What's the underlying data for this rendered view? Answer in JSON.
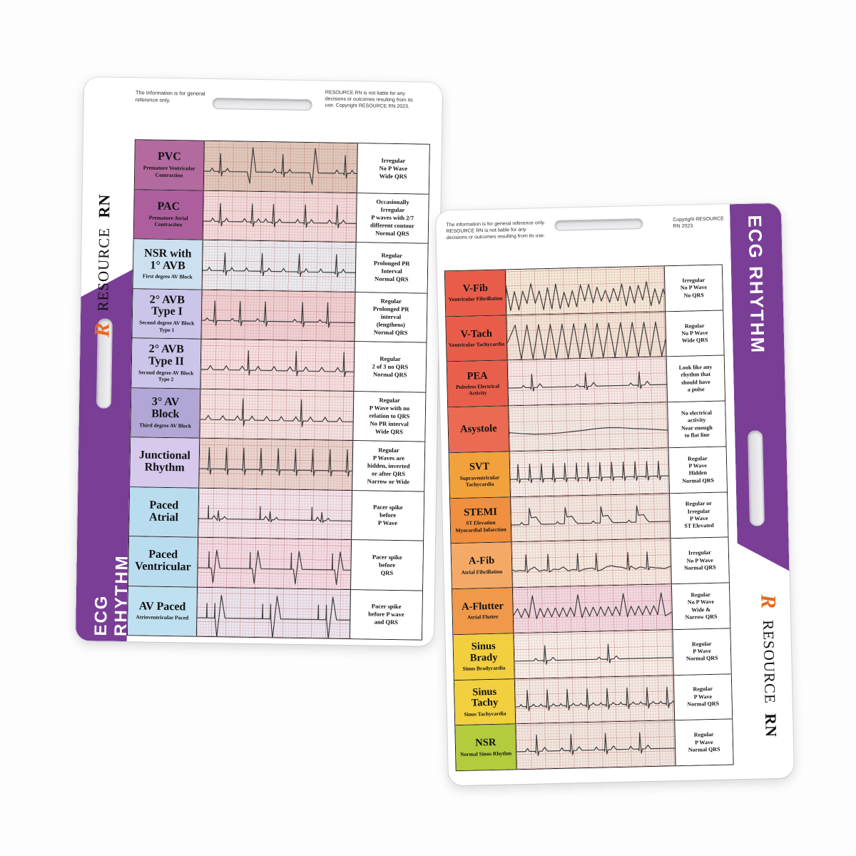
{
  "brand_accent_color": "#e8681e",
  "band_color": "#7a3e96",
  "left_card": {
    "disclaimer_left": "The information is for general reference only.",
    "disclaimer_right": "RESOURCE RN is not liable for any decisions or outcomes resulting from its use. Copyright RESOURCE RN 2023.",
    "side_label": "ECG RHYTHM",
    "brand": {
      "logo": "R",
      "name": "RESOURCE",
      "suffix": "RN"
    },
    "rows": [
      {
        "abbr": "PVC",
        "full": "Premature Ventricular Contraction",
        "desc": "Irregular\nNo P Wave\nWide QRS",
        "label_color": "#b36a9f",
        "strip_color": "#dfc9bc",
        "wave": "pvc"
      },
      {
        "abbr": "PAC",
        "full": "Premature Atrial Contraction",
        "desc": "Occasionally\nIrregular\nP waves with 2/7\ndifferent contour\nNormal QRS",
        "label_color": "#ad5f9d",
        "strip_color": "#f2dcdc",
        "wave": "pac"
      },
      {
        "abbr": "NSR with\n1° AVB",
        "full": "First degree AV Block",
        "desc": "Regular\nProlonged PR\nInterval\nNormal QRS",
        "label_color": "#cde0f0",
        "strip_color": "#e9eef3",
        "wave": "avb1"
      },
      {
        "abbr": "2° AVB\nType I",
        "full": "Second degree AV Block Type 1",
        "desc": "Regular\nProlonged PR\ninterval\n(lengthens)\nNormal QRS",
        "label_color": "#ccc5ea",
        "strip_color": "#efd2d4",
        "wave": "wenck"
      },
      {
        "abbr": "2° AVB\nType II",
        "full": "Second degree AV Block Type 2",
        "desc": "Regular\n2 of 3 no QRS\nNormal QRS",
        "label_color": "#ccc5ea",
        "strip_color": "#f5e0e1",
        "wave": "mobitz2"
      },
      {
        "abbr": "3° AV\nBlock",
        "full": "Third degree AV Block",
        "desc": "Regular\nP Wave with no\nrelation to QRS\nNo PR interval\nWide QRS",
        "label_color": "#b2a6d6",
        "strip_color": "#f3e4e2",
        "wave": "chb"
      },
      {
        "abbr": "Junctional\nRhythm",
        "full": "",
        "desc": "Regular\nP Waves are\nhidden, inverted\nor after QRS\nNarrow or Wide",
        "label_color": "#d6c9ec",
        "strip_color": "#e9d6cf",
        "wave": "junctional"
      },
      {
        "abbr": "Paced\nAtrial",
        "full": "",
        "desc": "Pacer spike\nbefore\nP Wave",
        "label_color": "#badcef",
        "strip_color": "#f2e6ee",
        "wave": "paced_a"
      },
      {
        "abbr": "Paced\nVentricular",
        "full": "",
        "desc": "Pacer spike\nbefore\nQRS",
        "label_color": "#badcef",
        "strip_color": "#f3dde6",
        "wave": "paced_v"
      },
      {
        "abbr": "AV Paced",
        "full": "Atrioventricular Paced",
        "desc": "Pacer spike\nbefore P wave\nand QRS",
        "label_color": "#bfe0f0",
        "strip_color": "#ebe7f1",
        "wave": "paced_av"
      }
    ]
  },
  "right_card": {
    "disclaimer_left": "The information is for general reference only. RESOURCE RN is not liable for any decisions or outcomes resulting from its use.",
    "disclaimer_right": "Copyright RESOURCE RN 2023.",
    "side_label": "ECG RHYTHM",
    "brand": {
      "logo": "R",
      "name": "RESOURCE",
      "suffix": "RN"
    },
    "rows": [
      {
        "abbr": "V-Fib",
        "full": "Ventricular Fibrillation",
        "desc": "Irregular\nNo P Wave\nNo QRS",
        "label_color": "#e85d49",
        "strip_color": "#f4ead9",
        "wave": "vfib"
      },
      {
        "abbr": "V-Tach",
        "full": "Ventricular Tachycardia",
        "desc": "Regular\nNo P Wave\nWide QRS",
        "label_color": "#e85d49",
        "strip_color": "#f2e6d8",
        "wave": "vtach"
      },
      {
        "abbr": "PEA",
        "full": "Pulseless Electrical Activity",
        "desc": "Look like any\nrhythm that\nshould have\na pulse",
        "label_color": "#e8604c",
        "strip_color": "#f5eae8",
        "wave": "pea"
      },
      {
        "abbr": "Asystole",
        "full": "",
        "desc": "No electrical\nactivity\nNear enough\nto flat line",
        "label_color": "#ea6a52",
        "strip_color": "#f2ebe5",
        "wave": "asystole"
      },
      {
        "abbr": "SVT",
        "full": "Supraventricular Tachycardia",
        "desc": "Regular\nP Wave\nHidden\nNormal QRS",
        "label_color": "#f2a23c",
        "strip_color": "#f5efe9",
        "wave": "svt"
      },
      {
        "abbr": "STEMI",
        "full": "ST Elevation Myocardial Infarction",
        "desc": "Regular or\nIrregular\nP Wave\nST Elevated",
        "label_color": "#ef8f3f",
        "strip_color": "#f2eae2",
        "wave": "stemi"
      },
      {
        "abbr": "A-Fib",
        "full": "Atrial Fibrillation",
        "desc": "Irregular\nNo P Wave\nNormal QRS",
        "label_color": "#f4aa66",
        "strip_color": "#f5ece2",
        "wave": "afib"
      },
      {
        "abbr": "A-Flutter",
        "full": "Atrial Flutter",
        "desc": "Regular\nNo P Wave\nWide &\nNarrow QRS",
        "label_color": "#f0994a",
        "strip_color": "#f2dae2",
        "wave": "aflutter"
      },
      {
        "abbr": "Sinus\nBrady",
        "full": "Sinus Bradycardia",
        "desc": "Regular\nP Wave\nNormal QRS",
        "label_color": "#f2cf3e",
        "strip_color": "#f7f1ea",
        "wave": "brady"
      },
      {
        "abbr": "Sinus\nTachy",
        "full": "Sinus Tachycardia",
        "desc": "Regular\nP Wave\nNormal QRS",
        "label_color": "#f2cf3e",
        "strip_color": "#f3ece4",
        "wave": "tachy"
      },
      {
        "abbr": "NSR",
        "full": "Normal Sinus Rhythm",
        "desc": "Regular\nP Wave\nNormal QRS",
        "label_color": "#b2cc3e",
        "strip_color": "#f0e8e0",
        "wave": "nsr"
      }
    ]
  }
}
